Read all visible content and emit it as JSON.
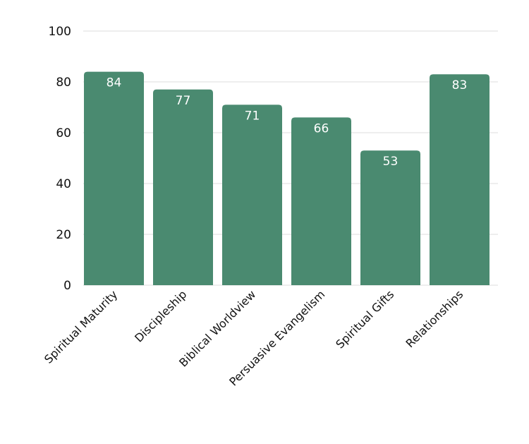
{
  "chart_data": {
    "type": "bar",
    "categories": [
      "Spiritual Maturity",
      "Discipleship",
      "Biblical Worldview",
      "Persuasive Evangelism",
      "Spiritual Gifts",
      "Relationships"
    ],
    "values": [
      84,
      77,
      71,
      66,
      53,
      83
    ],
    "ylim": [
      0,
      100
    ],
    "yticks": [
      0,
      20,
      40,
      60,
      80,
      100
    ],
    "grid": true,
    "legend": "none",
    "data_labels": true,
    "colors": {
      "bar": "#4a8a70",
      "grid": "#dddddd",
      "data_label": "#ffffff"
    }
  }
}
